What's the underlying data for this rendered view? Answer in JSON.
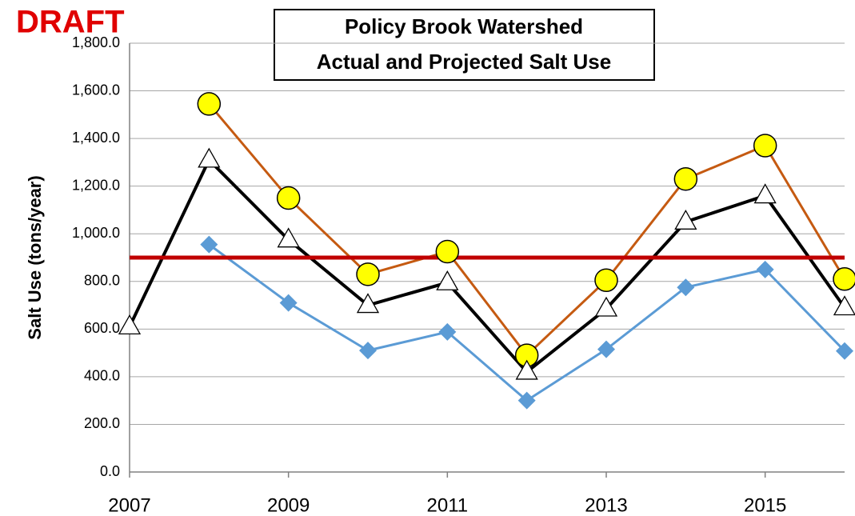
{
  "chart_data": {
    "type": "line",
    "title": [
      "Policy Brook Watershed",
      "Actual and Projected Salt Use"
    ],
    "annotation": "DRAFT",
    "y_label": "Salt Use (tons/year)",
    "x": [
      2007,
      2008,
      2009,
      2010,
      2011,
      2012,
      2013,
      2014,
      2015,
      2016
    ],
    "xlim": [
      2007,
      2016
    ],
    "xticks": [
      2007,
      2009,
      2011,
      2013,
      2015
    ],
    "ylim": [
      0,
      1800
    ],
    "yticks": [
      {
        "value": 0,
        "label": "0.0"
      },
      {
        "value": 200,
        "label": "200.0"
      },
      {
        "value": 400,
        "label": "400.0"
      },
      {
        "value": 600,
        "label": "600.0"
      },
      {
        "value": 800,
        "label": "800.0"
      },
      {
        "value": 1000,
        "label": "1,000.0"
      },
      {
        "value": 1200,
        "label": "1,200.0"
      },
      {
        "value": 1400,
        "label": "1,400.0"
      },
      {
        "value": 1600,
        "label": "1,600.0"
      },
      {
        "value": 1800,
        "label": "1,800.0"
      }
    ],
    "grid": true,
    "series": [
      {
        "color": "#c55a11",
        "marker": "circle",
        "marker_color": "#ffff00",
        "values": [
          null,
          1545,
          1150,
          830,
          925,
          490,
          805,
          1230,
          1370,
          810
        ]
      },
      {
        "color": "#000000",
        "marker": "triangle",
        "marker_color": "#ffffff",
        "values": [
          610,
          1310,
          975,
          700,
          795,
          420,
          685,
          1050,
          1160,
          690
        ]
      },
      {
        "color": "#5b9bd5",
        "marker": "diamond",
        "marker_color": "#5b9bd5",
        "values": [
          null,
          955,
          710,
          510,
          588,
          300,
          515,
          775,
          850,
          508
        ]
      }
    ],
    "reference_line": {
      "value": 900,
      "color": "#c00000"
    }
  }
}
